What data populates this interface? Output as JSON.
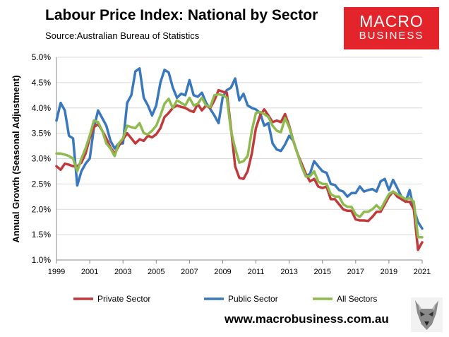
{
  "title": "Labour Price Index: National by Sector",
  "source": "Source:Australian Bureau of Statistics",
  "logo": {
    "line1": "MACRO",
    "line2": "BUSINESS"
  },
  "website": "www.macrobusiness.com.au",
  "colors": {
    "private": "#c0393b",
    "public": "#3a78bd",
    "all": "#8fba4f",
    "logo_bg": "#e3242b"
  },
  "chart_data": {
    "type": "line",
    "title": "Labour Price Index: National by Sector",
    "xlabel": "",
    "ylabel": "Annual Growth (Seasonal Adjustment)",
    "xlim": [
      1999,
      2021
    ],
    "ylim": [
      1.0,
      5.0
    ],
    "yticks": [
      1.0,
      1.5,
      2.0,
      2.5,
      3.0,
      3.5,
      4.0,
      4.5,
      5.0
    ],
    "ytick_labels": [
      "1.0%",
      "1.5%",
      "2.0%",
      "2.5%",
      "3.0%",
      "3.5%",
      "4.0%",
      "4.5%",
      "5.0%"
    ],
    "xticks": [
      1999,
      2001,
      2003,
      2005,
      2007,
      2009,
      2011,
      2013,
      2015,
      2017,
      2019,
      2021
    ],
    "xtick_labels": [
      "1999",
      "2001",
      "2003",
      "2005",
      "2007",
      "2009",
      "2011",
      "2013",
      "2015",
      "2017",
      "2019",
      "2021"
    ],
    "legend_position": "bottom",
    "x": [
      1999.0,
      1999.25,
      1999.5,
      1999.75,
      2000.0,
      2000.25,
      2000.5,
      2000.75,
      2001.0,
      2001.25,
      2001.5,
      2001.75,
      2002.0,
      2002.25,
      2002.5,
      2002.75,
      2003.0,
      2003.25,
      2003.5,
      2003.75,
      2004.0,
      2004.25,
      2004.5,
      2004.75,
      2005.0,
      2005.25,
      2005.5,
      2005.75,
      2006.0,
      2006.25,
      2006.5,
      2006.75,
      2007.0,
      2007.25,
      2007.5,
      2007.75,
      2008.0,
      2008.25,
      2008.5,
      2008.75,
      2009.0,
      2009.25,
      2009.5,
      2009.75,
      2010.0,
      2010.25,
      2010.5,
      2010.75,
      2011.0,
      2011.25,
      2011.5,
      2011.75,
      2012.0,
      2012.25,
      2012.5,
      2012.75,
      2013.0,
      2013.25,
      2013.5,
      2013.75,
      2014.0,
      2014.25,
      2014.5,
      2014.75,
      2015.0,
      2015.25,
      2015.5,
      2015.75,
      2016.0,
      2016.25,
      2016.5,
      2016.75,
      2017.0,
      2017.25,
      2017.5,
      2017.75,
      2018.0,
      2018.25,
      2018.5,
      2018.75,
      2019.0,
      2019.25,
      2019.5,
      2019.75,
      2020.0,
      2020.25,
      2020.5,
      2020.75,
      2021.0
    ],
    "series": [
      {
        "name": "Private Sector",
        "color": "#c0393b",
        "values": [
          2.85,
          2.78,
          2.9,
          2.88,
          2.85,
          2.85,
          2.92,
          3.1,
          3.4,
          3.62,
          3.68,
          3.55,
          3.4,
          3.22,
          3.1,
          3.25,
          3.38,
          3.5,
          3.4,
          3.3,
          3.38,
          3.35,
          3.45,
          3.42,
          3.48,
          3.6,
          3.82,
          3.9,
          4.0,
          4.05,
          4.02,
          4.0,
          3.95,
          3.92,
          4.08,
          3.95,
          4.05,
          4.0,
          4.15,
          4.35,
          4.32,
          4.3,
          3.6,
          2.85,
          2.62,
          2.6,
          2.75,
          3.1,
          3.6,
          3.85,
          3.97,
          3.85,
          3.72,
          3.75,
          3.72,
          3.88,
          3.65,
          3.35,
          3.1,
          2.9,
          2.7,
          2.55,
          2.6,
          2.45,
          2.42,
          2.45,
          2.2,
          2.2,
          2.1,
          2.0,
          1.97,
          1.97,
          1.8,
          1.78,
          1.78,
          1.77,
          1.85,
          1.95,
          1.95,
          2.1,
          2.25,
          2.35,
          2.25,
          2.2,
          2.15,
          2.15,
          2.0,
          1.2,
          1.35
        ]
      },
      {
        "name": "Public Sector",
        "color": "#3a78bd",
        "values": [
          3.75,
          4.1,
          3.95,
          3.45,
          3.4,
          2.47,
          2.75,
          2.9,
          3.0,
          3.6,
          3.95,
          3.8,
          3.65,
          3.35,
          3.2,
          3.3,
          3.3,
          4.1,
          4.25,
          4.72,
          4.78,
          4.2,
          4.05,
          3.85,
          4.05,
          4.5,
          4.75,
          4.7,
          4.4,
          4.2,
          4.28,
          4.25,
          4.55,
          4.25,
          4.22,
          4.3,
          4.1,
          3.98,
          3.85,
          3.7,
          4.22,
          4.35,
          4.4,
          4.58,
          4.15,
          4.28,
          4.05,
          4.0,
          3.97,
          3.9,
          3.65,
          3.7,
          3.3,
          3.18,
          3.15,
          3.28,
          3.45,
          3.35,
          3.1,
          2.85,
          2.65,
          2.7,
          2.95,
          2.85,
          2.75,
          2.72,
          2.5,
          2.48,
          2.38,
          2.35,
          2.25,
          2.32,
          2.32,
          2.45,
          2.35,
          2.38,
          2.4,
          2.35,
          2.55,
          2.6,
          2.38,
          2.58,
          2.42,
          2.25,
          2.15,
          2.38,
          2.0,
          1.75,
          1.62
        ]
      },
      {
        "name": "All Sectors",
        "color": "#8fba4f",
        "values": [
          3.1,
          3.1,
          3.08,
          3.05,
          3.0,
          2.75,
          3.0,
          3.2,
          3.45,
          3.75,
          3.72,
          3.55,
          3.3,
          3.2,
          3.05,
          3.3,
          3.4,
          3.65,
          3.62,
          3.6,
          3.7,
          3.5,
          3.48,
          3.55,
          3.65,
          3.85,
          4.08,
          4.18,
          4.0,
          4.15,
          4.1,
          4.05,
          4.2,
          4.05,
          4.08,
          4.2,
          4.05,
          4.02,
          4.25,
          4.27,
          4.25,
          4.2,
          3.55,
          3.2,
          2.92,
          2.95,
          3.05,
          3.55,
          3.9,
          3.92,
          3.88,
          3.82,
          3.65,
          3.55,
          3.52,
          3.8,
          3.62,
          3.35,
          3.1,
          2.85,
          2.65,
          2.65,
          2.75,
          2.55,
          2.5,
          2.5,
          2.3,
          2.25,
          2.25,
          2.1,
          2.05,
          2.05,
          1.9,
          1.85,
          1.95,
          1.95,
          2.0,
          2.08,
          2.0,
          2.15,
          2.3,
          2.35,
          2.3,
          2.25,
          2.2,
          2.22,
          2.15,
          1.45,
          1.45
        ]
      }
    ]
  }
}
